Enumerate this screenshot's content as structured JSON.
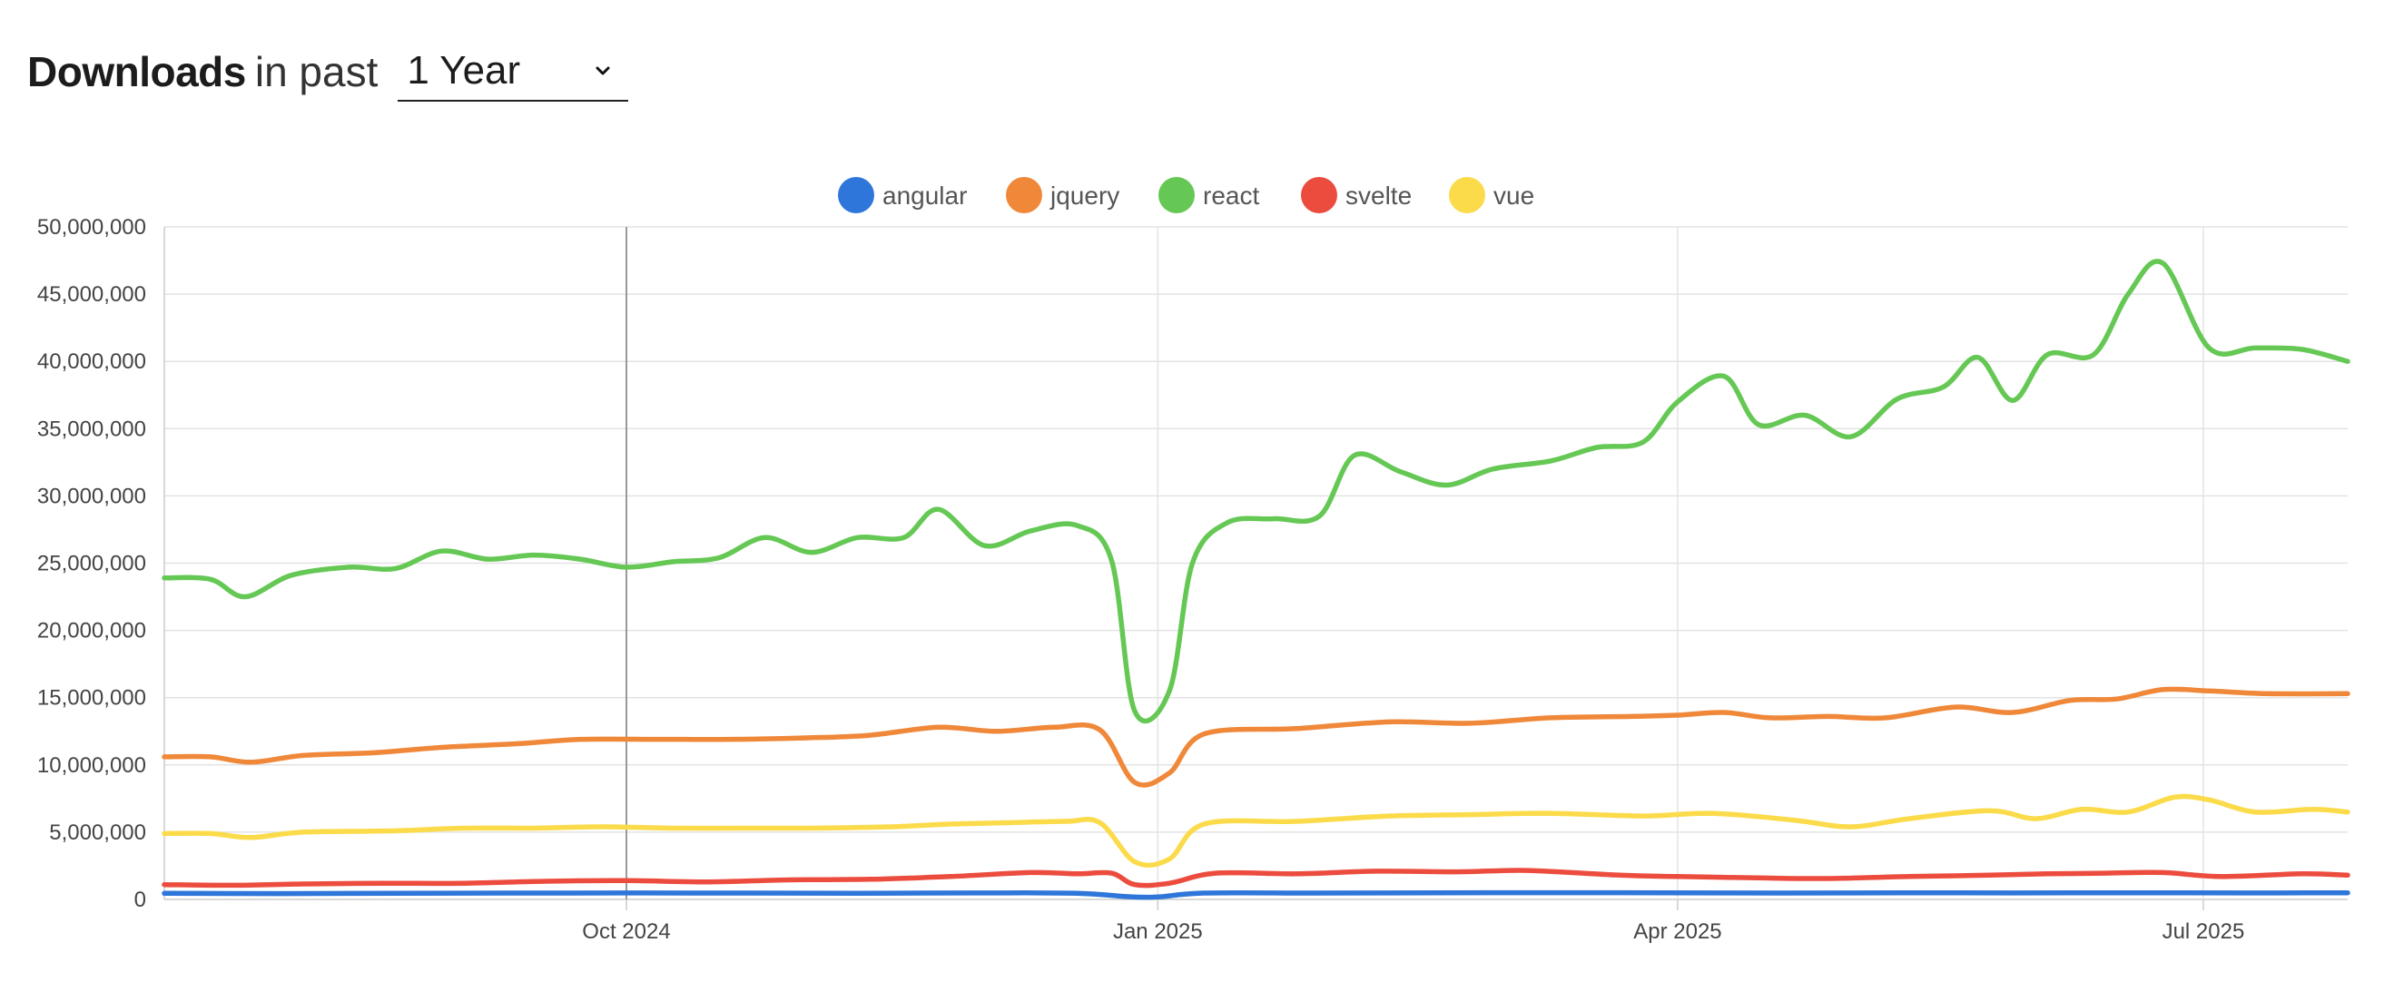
{
  "header": {
    "title_bold": "Downloads",
    "title_rest": "in past",
    "period_selected": "1 Year"
  },
  "colors": {
    "angular": "#2e76d9",
    "jquery": "#f0883a",
    "react": "#65c854",
    "svelte": "#ec4c3e",
    "vue": "#fbdb4a",
    "grid": "#e3e3e3",
    "axis": "#cccccc",
    "marker": "#999999"
  },
  "chart_data": {
    "type": "line",
    "title": "Downloads in past 1 Year",
    "xlabel": "",
    "ylabel": "",
    "ylim": [
      0,
      50000000
    ],
    "yticks": [
      0,
      5000000,
      10000000,
      15000000,
      20000000,
      25000000,
      30000000,
      35000000,
      40000000,
      45000000,
      50000000
    ],
    "ytick_labels": [
      "0",
      "5,000,000",
      "10,000,000",
      "15,000,000",
      "20,000,000",
      "25,000,000",
      "30,000,000",
      "35,000,000",
      "40,000,000",
      "45,000,000",
      "50,000,000"
    ],
    "x_start": "2024-07-14",
    "x_end": "2025-07-27",
    "x_unit": "days since x_start",
    "xlim": [
      0,
      378
    ],
    "xticks": [
      {
        "label": "Oct 2024",
        "day": 80
      },
      {
        "label": "Jan 2025",
        "day": 172
      },
      {
        "label": "Apr 2025",
        "day": 262
      },
      {
        "label": "Jul 2025",
        "day": 353
      }
    ],
    "legend_position": "top-center",
    "grid": true,
    "series": [
      {
        "name": "angular",
        "points": [
          [
            0,
            450000
          ],
          [
            20,
            430000
          ],
          [
            40,
            450000
          ],
          [
            60,
            470000
          ],
          [
            80,
            480000
          ],
          [
            100,
            470000
          ],
          [
            120,
            460000
          ],
          [
            140,
            480000
          ],
          [
            158,
            460000
          ],
          [
            167,
            200000
          ],
          [
            172,
            180000
          ],
          [
            180,
            470000
          ],
          [
            200,
            470000
          ],
          [
            220,
            490000
          ],
          [
            240,
            500000
          ],
          [
            260,
            490000
          ],
          [
            280,
            470000
          ],
          [
            300,
            490000
          ],
          [
            320,
            480000
          ],
          [
            340,
            490000
          ],
          [
            360,
            480000
          ],
          [
            378,
            490000
          ]
        ]
      },
      {
        "name": "svelte",
        "points": [
          [
            0,
            1100000
          ],
          [
            12,
            1050000
          ],
          [
            24,
            1150000
          ],
          [
            38,
            1200000
          ],
          [
            52,
            1200000
          ],
          [
            66,
            1350000
          ],
          [
            80,
            1400000
          ],
          [
            94,
            1300000
          ],
          [
            108,
            1450000
          ],
          [
            122,
            1500000
          ],
          [
            136,
            1700000
          ],
          [
            150,
            2000000
          ],
          [
            158,
            1900000
          ],
          [
            164,
            1950000
          ],
          [
            168,
            1100000
          ],
          [
            174,
            1200000
          ],
          [
            182,
            1950000
          ],
          [
            196,
            1900000
          ],
          [
            210,
            2100000
          ],
          [
            224,
            2050000
          ],
          [
            236,
            2150000
          ],
          [
            252,
            1800000
          ],
          [
            262,
            1700000
          ],
          [
            276,
            1600000
          ],
          [
            288,
            1550000
          ],
          [
            302,
            1700000
          ],
          [
            316,
            1800000
          ],
          [
            326,
            1900000
          ],
          [
            336,
            1950000
          ],
          [
            346,
            2000000
          ],
          [
            356,
            1700000
          ],
          [
            370,
            1900000
          ],
          [
            378,
            1800000
          ]
        ]
      },
      {
        "name": "vue",
        "points": [
          [
            0,
            4900000
          ],
          [
            8,
            4900000
          ],
          [
            15,
            4600000
          ],
          [
            24,
            5000000
          ],
          [
            40,
            5100000
          ],
          [
            52,
            5300000
          ],
          [
            64,
            5300000
          ],
          [
            76,
            5400000
          ],
          [
            88,
            5300000
          ],
          [
            100,
            5300000
          ],
          [
            112,
            5300000
          ],
          [
            126,
            5400000
          ],
          [
            136,
            5600000
          ],
          [
            146,
            5700000
          ],
          [
            156,
            5800000
          ],
          [
            162,
            5700000
          ],
          [
            168,
            2800000
          ],
          [
            174,
            3000000
          ],
          [
            180,
            5600000
          ],
          [
            196,
            5800000
          ],
          [
            212,
            6200000
          ],
          [
            226,
            6300000
          ],
          [
            240,
            6400000
          ],
          [
            256,
            6200000
          ],
          [
            268,
            6400000
          ],
          [
            282,
            5900000
          ],
          [
            292,
            5400000
          ],
          [
            302,
            6000000
          ],
          [
            316,
            6600000
          ],
          [
            324,
            6000000
          ],
          [
            332,
            6700000
          ],
          [
            340,
            6500000
          ],
          [
            348,
            7600000
          ],
          [
            354,
            7400000
          ],
          [
            362,
            6500000
          ],
          [
            372,
            6700000
          ],
          [
            378,
            6500000
          ]
        ]
      },
      {
        "name": "jquery",
        "points": [
          [
            0,
            10600000
          ],
          [
            8,
            10600000
          ],
          [
            15,
            10200000
          ],
          [
            24,
            10700000
          ],
          [
            36,
            10900000
          ],
          [
            48,
            11300000
          ],
          [
            62,
            11600000
          ],
          [
            72,
            11900000
          ],
          [
            86,
            11900000
          ],
          [
            98,
            11900000
          ],
          [
            110,
            12000000
          ],
          [
            122,
            12200000
          ],
          [
            134,
            12800000
          ],
          [
            144,
            12500000
          ],
          [
            154,
            12800000
          ],
          [
            162,
            12600000
          ],
          [
            168,
            8700000
          ],
          [
            174,
            9400000
          ],
          [
            180,
            12300000
          ],
          [
            196,
            12700000
          ],
          [
            212,
            13200000
          ],
          [
            226,
            13100000
          ],
          [
            240,
            13500000
          ],
          [
            254,
            13600000
          ],
          [
            262,
            13700000
          ],
          [
            270,
            13900000
          ],
          [
            278,
            13500000
          ],
          [
            288,
            13600000
          ],
          [
            298,
            13500000
          ],
          [
            310,
            14300000
          ],
          [
            320,
            13900000
          ],
          [
            330,
            14800000
          ],
          [
            338,
            14900000
          ],
          [
            346,
            15600000
          ],
          [
            354,
            15500000
          ],
          [
            364,
            15300000
          ],
          [
            378,
            15300000
          ]
        ]
      },
      {
        "name": "react",
        "points": [
          [
            0,
            23900000
          ],
          [
            8,
            23800000
          ],
          [
            14,
            22500000
          ],
          [
            22,
            24100000
          ],
          [
            32,
            24700000
          ],
          [
            40,
            24600000
          ],
          [
            48,
            25900000
          ],
          [
            56,
            25300000
          ],
          [
            64,
            25600000
          ],
          [
            72,
            25300000
          ],
          [
            80,
            24700000
          ],
          [
            88,
            25100000
          ],
          [
            96,
            25400000
          ],
          [
            104,
            26900000
          ],
          [
            112,
            25800000
          ],
          [
            120,
            26900000
          ],
          [
            128,
            26900000
          ],
          [
            134,
            29000000
          ],
          [
            142,
            26300000
          ],
          [
            150,
            27400000
          ],
          [
            158,
            27800000
          ],
          [
            164,
            25200000
          ],
          [
            168,
            14000000
          ],
          [
            174,
            15500000
          ],
          [
            178,
            25000000
          ],
          [
            184,
            28000000
          ],
          [
            192,
            28300000
          ],
          [
            200,
            28500000
          ],
          [
            206,
            33000000
          ],
          [
            214,
            31800000
          ],
          [
            222,
            30800000
          ],
          [
            230,
            32000000
          ],
          [
            240,
            32600000
          ],
          [
            248,
            33600000
          ],
          [
            256,
            34000000
          ],
          [
            262,
            37000000
          ],
          [
            270,
            38900000
          ],
          [
            276,
            35300000
          ],
          [
            284,
            36000000
          ],
          [
            292,
            34400000
          ],
          [
            300,
            37200000
          ],
          [
            308,
            38100000
          ],
          [
            314,
            40300000
          ],
          [
            320,
            37100000
          ],
          [
            326,
            40500000
          ],
          [
            334,
            40500000
          ],
          [
            340,
            45000000
          ],
          [
            346,
            47300000
          ],
          [
            354,
            41000000
          ],
          [
            362,
            41000000
          ],
          [
            370,
            40900000
          ],
          [
            378,
            40000000
          ]
        ]
      }
    ]
  }
}
